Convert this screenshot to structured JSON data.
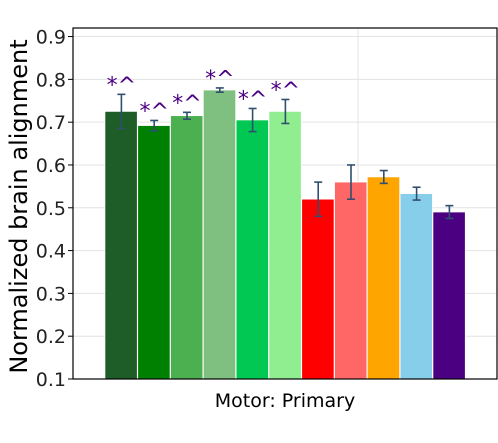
{
  "chart_data": {
    "type": "bar",
    "xlabel": "Motor: Primary",
    "ylabel": "Normalized brain alignment",
    "ylim": [
      0.1,
      0.92
    ],
    "yticks": [
      "0.1",
      "0.2",
      "0.3",
      "0.4",
      "0.5",
      "0.6",
      "0.7",
      "0.8",
      "0.9"
    ],
    "grid": true,
    "annotation_color": "#4b0082",
    "error_color": "#2f4f6f",
    "bars": [
      {
        "value": 0.725,
        "err": 0.04,
        "color": "#1e5c28",
        "annotation": "*^"
      },
      {
        "value": 0.692,
        "err": 0.012,
        "color": "#008000",
        "annotation": "*^"
      },
      {
        "value": 0.715,
        "err": 0.008,
        "color": "#4caf50",
        "annotation": "*^"
      },
      {
        "value": 0.775,
        "err": 0.005,
        "color": "#7fbf7f",
        "annotation": "*^"
      },
      {
        "value": 0.705,
        "err": 0.027,
        "color": "#00c853",
        "annotation": "*^"
      },
      {
        "value": 0.725,
        "err": 0.028,
        "color": "#90ee90",
        "annotation": "*^"
      },
      {
        "value": 0.52,
        "err": 0.04,
        "color": "#ff0000",
        "annotation": ""
      },
      {
        "value": 0.56,
        "err": 0.04,
        "color": "#ff6666",
        "annotation": ""
      },
      {
        "value": 0.572,
        "err": 0.015,
        "color": "#ffa500",
        "annotation": ""
      },
      {
        "value": 0.533,
        "err": 0.015,
        "color": "#87ceeb",
        "annotation": ""
      },
      {
        "value": 0.49,
        "err": 0.015,
        "color": "#4b0082",
        "annotation": ""
      }
    ]
  }
}
